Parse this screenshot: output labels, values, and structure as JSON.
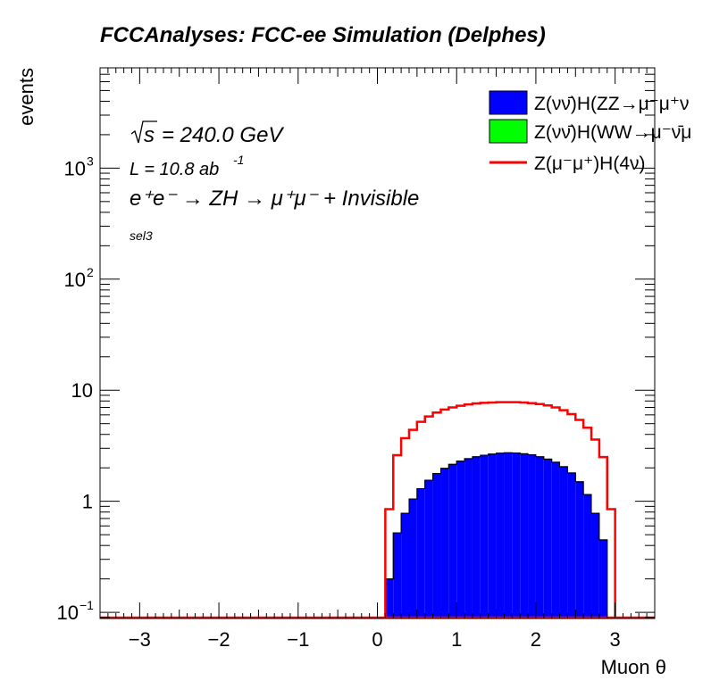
{
  "chart_data": {
    "type": "histogram",
    "title": "FCCAnalyses: FCC-ee Simulation (Delphes)",
    "xlabel": "Muon θ",
    "ylabel": "events",
    "xlim": [
      -3.5,
      3.5
    ],
    "ylim": [
      0.088,
      8000
    ],
    "yscale": "log",
    "grid": false,
    "legend_position": "top-right",
    "x_ticks": [
      "−3",
      "−2",
      "−1",
      "0",
      "1",
      "2",
      "3"
    ],
    "y_ticks": [
      {
        "base": "10",
        "exp": "−1"
      },
      {
        "base": "1",
        "exp": ""
      },
      {
        "base": "10",
        "exp": ""
      },
      {
        "base": "10",
        "exp": "2"
      },
      {
        "base": "10",
        "exp": "3"
      }
    ],
    "annotations": {
      "energy": "= 240.0 GeV",
      "energy_symbol": "s",
      "lumi": "L = 10.8 ab",
      "lumi_exp": "-1",
      "process": "e⁺e⁻ → ZH → μ⁺μ⁻ + Invisible",
      "selection": "sel3"
    },
    "bin_edges_start": 0.1,
    "bin_width": 0.1,
    "series": [
      {
        "name": "Z(νν̄)H(ZZ→μ⁻μ⁺ν",
        "kind": "stacked-fill",
        "color": "#0000ff",
        "values": [
          0.2,
          0.52,
          0.78,
          1.05,
          1.3,
          1.55,
          1.78,
          1.98,
          2.15,
          2.3,
          2.42,
          2.52,
          2.6,
          2.66,
          2.71,
          2.73,
          2.72,
          2.68,
          2.62,
          2.52,
          2.4,
          2.25,
          2.05,
          1.8,
          1.5,
          1.15,
          0.78,
          0.45,
          0.09
        ]
      },
      {
        "name": "Z(νν̄)H(WW→μ⁻ν̄μ",
        "kind": "stacked-fill",
        "color": "#00ff00",
        "values": [
          0,
          0,
          0,
          0,
          0,
          0,
          0,
          0,
          0,
          0,
          0,
          0,
          0,
          0.002,
          0.004,
          0.006,
          0.003,
          0.002,
          0,
          0,
          0,
          0,
          0,
          0,
          0,
          0,
          0,
          0,
          0
        ]
      },
      {
        "name": "Z(μ⁻μ⁺)H(4ν)",
        "kind": "line",
        "color": "#ff0000",
        "values": [
          0.85,
          2.6,
          3.7,
          4.4,
          5.2,
          5.8,
          6.3,
          6.7,
          7.0,
          7.25,
          7.45,
          7.6,
          7.7,
          7.75,
          7.8,
          7.8,
          7.8,
          7.75,
          7.65,
          7.5,
          7.3,
          7.0,
          6.6,
          6.1,
          5.4,
          4.6,
          3.6,
          2.5,
          0.85
        ]
      }
    ]
  }
}
